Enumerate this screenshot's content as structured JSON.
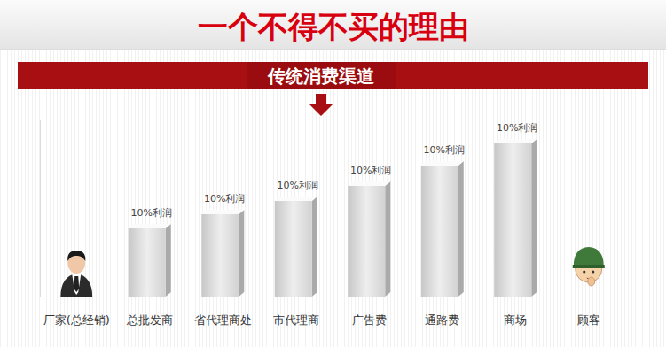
{
  "chart_data": {
    "type": "bar",
    "title": "一个不得不买的理由",
    "subtitle": "传统消费渠道",
    "categories": [
      "厂家(总经销)",
      "总批发商",
      "省代理商处",
      "市代理商",
      "广告费",
      "通路费",
      "商场",
      "顾客"
    ],
    "values": [
      null,
      77,
      93,
      108,
      125,
      148,
      173,
      null
    ],
    "annotations": [
      null,
      "10%利润",
      "10%利润",
      "10%利润",
      "10%利润",
      "10%利润",
      "10%利润",
      null
    ],
    "color": "#d2d2d2",
    "ylim": [
      0,
      200
    ],
    "tick_labels": "x"
  }
}
